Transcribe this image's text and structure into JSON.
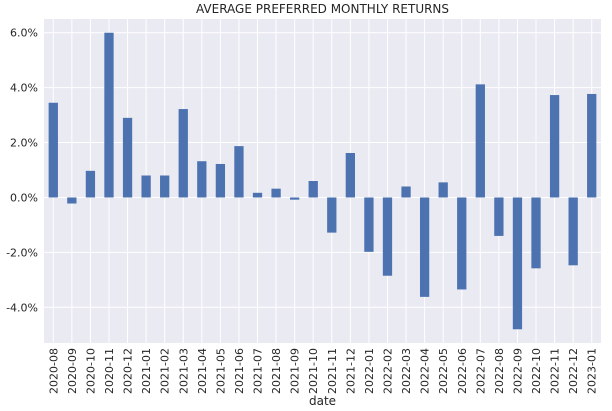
{
  "chart_data": {
    "type": "bar",
    "title": "AVERAGE PREFERRED MONTHLY RETURNS",
    "xlabel": "date",
    "ylabel": "",
    "categories": [
      "2020-08",
      "2020-09",
      "2020-10",
      "2020-11",
      "2020-12",
      "2021-01",
      "2021-02",
      "2021-03",
      "2021-04",
      "2021-05",
      "2021-06",
      "2021-07",
      "2021-08",
      "2021-09",
      "2021-10",
      "2021-11",
      "2021-12",
      "2022-01",
      "2022-02",
      "2022-03",
      "2022-04",
      "2022-05",
      "2022-06",
      "2022-07",
      "2022-08",
      "2022-09",
      "2022-10",
      "2022-11",
      "2022-12",
      "2023-01"
    ],
    "values": [
      3.45,
      -0.22,
      0.97,
      6.0,
      2.9,
      0.8,
      0.8,
      3.22,
      1.32,
      1.22,
      1.87,
      0.17,
      0.32,
      -0.08,
      0.6,
      -1.28,
      1.62,
      -1.98,
      -2.85,
      0.4,
      -3.62,
      0.55,
      -3.35,
      4.12,
      -1.4,
      -4.8,
      -2.58,
      3.73,
      -2.47,
      3.77
    ],
    "ylim": [
      -5.3,
      6.5
    ],
    "yticks": [
      -4,
      -2,
      0,
      2,
      4,
      6
    ],
    "ytick_labels": [
      "-4.0%",
      "-2.0%",
      "0.0%",
      "2.0%",
      "4.0%",
      "6.0%"
    ],
    "grid": true,
    "colors": {
      "bar": "#4c72b0",
      "background": "#eaeaf2",
      "grid": "#ffffff"
    }
  }
}
